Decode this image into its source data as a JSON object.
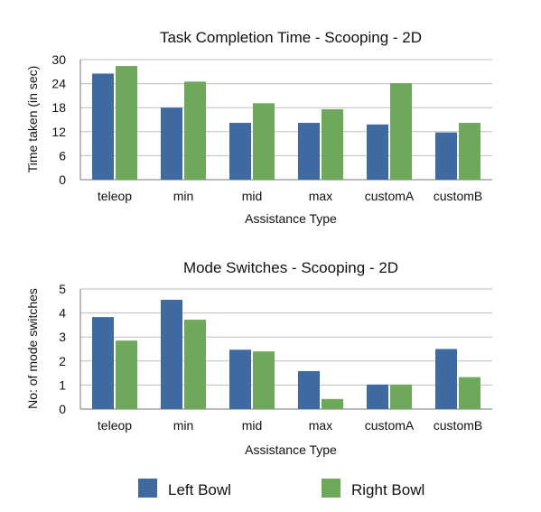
{
  "colors": {
    "left_bowl": "#3e6aa1",
    "right_bowl": "#6ea85a",
    "grid": "#bdbdbd",
    "axis": "#777777"
  },
  "legend": {
    "items": [
      "Left Bowl",
      "Right Bowl"
    ]
  },
  "chart_data": [
    {
      "type": "bar",
      "title": "Task Completion Time - Scooping - 2D",
      "xlabel": "Assistance Type",
      "ylabel": "Time taken (in sec)",
      "categories": [
        "teleop",
        "min",
        "mid",
        "max",
        "customA",
        "customB"
      ],
      "ylim": [
        0,
        30
      ],
      "yticks": [
        0,
        6,
        12,
        18,
        24,
        30
      ],
      "grid": true,
      "legend_position": "bottom",
      "series": [
        {
          "name": "Left Bowl",
          "values": [
            26.5,
            18.0,
            14.2,
            14.2,
            13.8,
            11.8
          ]
        },
        {
          "name": "Right Bowl",
          "values": [
            28.4,
            24.5,
            19.1,
            17.6,
            24.1,
            14.2
          ]
        }
      ]
    },
    {
      "type": "bar",
      "title": "Mode Switches - Scooping - 2D",
      "xlabel": "Assistance Type",
      "ylabel": "No: of mode switches",
      "categories": [
        "teleop",
        "min",
        "mid",
        "max",
        "customA",
        "customB"
      ],
      "ylim": [
        0,
        5
      ],
      "yticks": [
        0,
        1,
        2,
        3,
        4,
        5
      ],
      "grid": true,
      "legend_position": "bottom",
      "series": [
        {
          "name": "Left Bowl",
          "values": [
            3.83,
            4.55,
            2.47,
            1.58,
            1.02,
            2.5
          ]
        },
        {
          "name": "Right Bowl",
          "values": [
            2.85,
            3.72,
            2.4,
            0.42,
            1.02,
            1.33
          ]
        }
      ]
    }
  ]
}
